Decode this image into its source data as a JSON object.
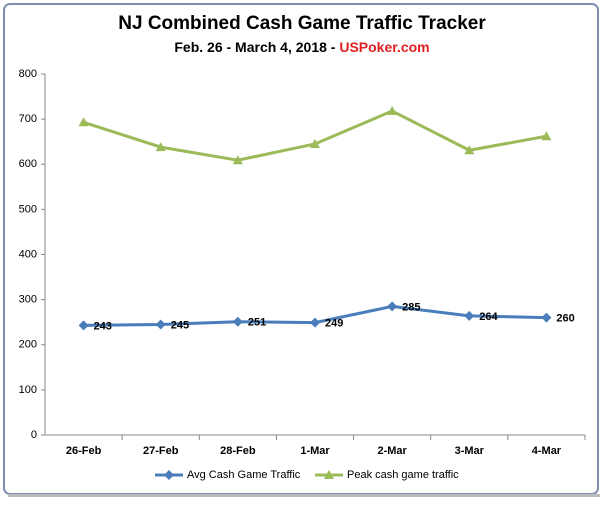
{
  "chart_data": {
    "type": "line",
    "title": "NJ Combined Cash Game Traffic Tracker",
    "subtitle": "Feb. 26 - March 4, 2018 - ",
    "subtitle_site": "USPoker.com",
    "categories": [
      "26-Feb",
      "27-Feb",
      "28-Feb",
      "1-Mar",
      "2-Mar",
      "3-Mar",
      "4-Mar"
    ],
    "series": [
      {
        "name": "Avg Cash Game Traffic",
        "color": "#4a7ebb",
        "marker": "diamond",
        "values": [
          243,
          245,
          251,
          249,
          285,
          264,
          260
        ],
        "data_labels": true
      },
      {
        "name": "Peak cash game traffic",
        "color": "#9bbb59",
        "marker": "triangle",
        "values": [
          693,
          638,
          609,
          645,
          718,
          631,
          662
        ],
        "data_labels": false
      }
    ],
    "ylim": [
      0,
      800
    ],
    "yticks": [
      0,
      100,
      200,
      300,
      400,
      500,
      600,
      700,
      800
    ],
    "grid": false,
    "legend": "bottom"
  }
}
